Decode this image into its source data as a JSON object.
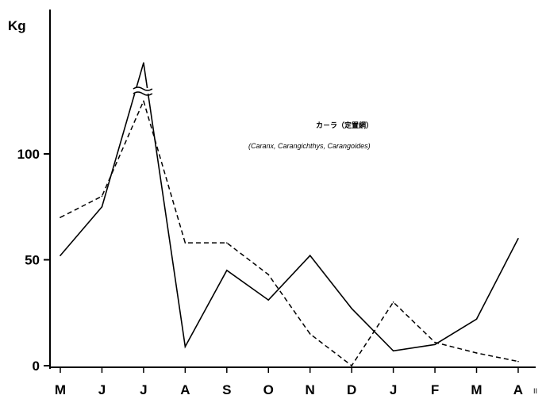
{
  "chart_data": {
    "type": "line",
    "ylabel": "Kg",
    "ylim": [
      0,
      160
    ],
    "yticks": [
      0,
      50,
      100
    ],
    "categories": [
      "M",
      "J",
      "J",
      "A",
      "S",
      "O",
      "N",
      "D",
      "J",
      "F",
      "M",
      "A"
    ],
    "x_suffix": "II",
    "annotation_title": "カ－ラ（定置網）",
    "annotation_genera": "(Caranx, Carangichthys, Carangoides)",
    "axis_break_category_index": 2,
    "series": [
      {
        "style": "solid",
        "values": [
          52,
          75,
          143,
          9,
          45,
          31,
          52,
          27,
          7,
          10,
          22,
          60
        ]
      },
      {
        "style": "dashed",
        "values": [
          70,
          80,
          125,
          58,
          58,
          43,
          15,
          0,
          30,
          11,
          6,
          2
        ]
      }
    ],
    "grid": false,
    "legend": "none"
  }
}
